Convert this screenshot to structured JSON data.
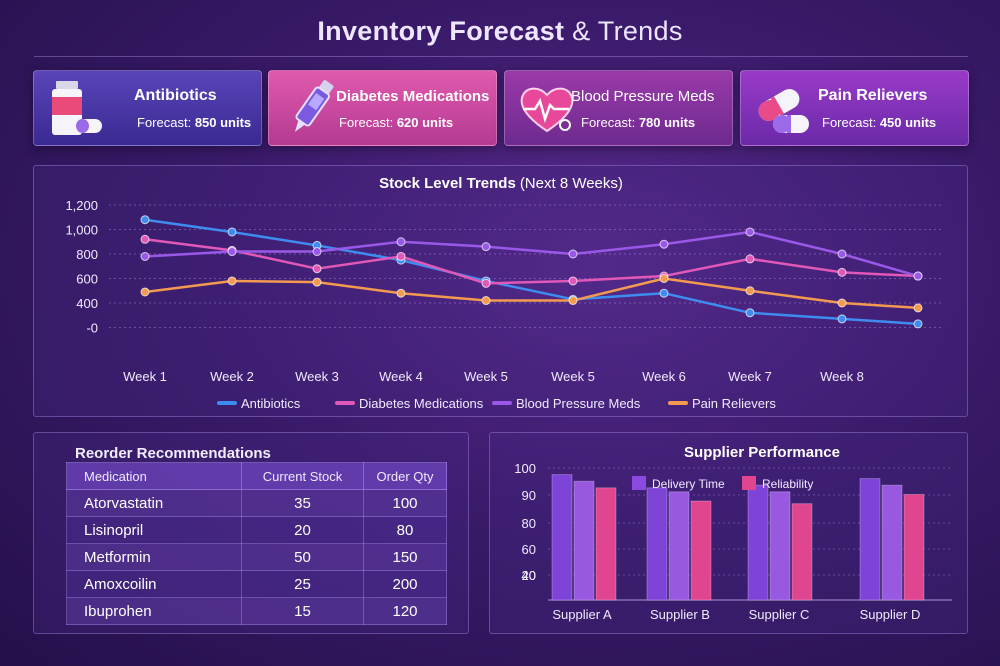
{
  "page": {
    "title_bold": "Inventory Forecast",
    "title_rest": " & Trends"
  },
  "cards": [
    {
      "name": "Antibiotics",
      "forecast_label": "Forecast:",
      "forecast_value": "850 units",
      "icon": "pill-bottle-icon"
    },
    {
      "name": "Diabetes Medications",
      "forecast_label": "Forecast:",
      "forecast_value": "620 units",
      "icon": "insulin-pen-icon"
    },
    {
      "name": "Blood Pressure Meds",
      "forecast_label": "Forecast:",
      "forecast_value": "780 units",
      "icon": "heart-pulse-icon"
    },
    {
      "name": "Pain Relievers",
      "forecast_label": "Forecast:",
      "forecast_value": "450 units",
      "icon": "capsules-icon"
    }
  ],
  "reorder": {
    "title": "Reorder Recommendations",
    "headers": [
      "Medication",
      "Current Stock",
      "Order Qty"
    ],
    "rows": [
      [
        "Atorvastatin",
        "35",
        "100"
      ],
      [
        "Lisinopril",
        "20",
        "80"
      ],
      [
        "Metformin",
        "50",
        "150"
      ],
      [
        "Amoxcoilin",
        "25",
        "200"
      ],
      [
        "Ibuprohen",
        "15",
        "120"
      ]
    ]
  },
  "colors": {
    "antibiotics": "#3f8cf0",
    "diabetes": "#e058b8",
    "bp": "#9a58e8",
    "pain": "#f39a50",
    "delivery": "#8a4ae0",
    "reliability": "#e0458f"
  },
  "chart_data": [
    {
      "type": "line",
      "title": "Stock Level Trends",
      "subtitle": "(Next 8 Weeks)",
      "categories": [
        "Week 1",
        "Week 2",
        "Week 3",
        "Week 4",
        "Week 5",
        "Week 5",
        "Week 6",
        "Week 7",
        "Week 8",
        ""
      ],
      "y_ticks": [
        "1,200",
        "1,000",
        "800",
        "600",
        "400",
        "-0"
      ],
      "ylim": [
        0,
        1200
      ],
      "grid": true,
      "legend_position": "bottom",
      "series": [
        {
          "name": "Antibiotics",
          "color": "#3f8cf0",
          "values": [
            1080,
            980,
            870,
            750,
            580,
            430,
            480,
            320,
            270,
            230
          ]
        },
        {
          "name": "Diabetes Medications",
          "color": "#e058b8",
          "values": [
            920,
            830,
            680,
            780,
            560,
            580,
            620,
            760,
            650,
            620
          ]
        },
        {
          "name": "Blood Pressure Meds",
          "color": "#9a58e8",
          "values": [
            780,
            820,
            820,
            900,
            860,
            800,
            880,
            980,
            800,
            620
          ]
        },
        {
          "name": "Pain Relievers",
          "color": "#f39a50",
          "values": [
            490,
            580,
            570,
            480,
            420,
            420,
            600,
            500,
            400,
            360
          ]
        }
      ]
    },
    {
      "type": "bar",
      "title": "Supplier Performance",
      "categories": [
        "Supplier A",
        "Supplier B",
        "Supplier C",
        "Supplier D"
      ],
      "y_ticks": [
        "100",
        "90",
        "80",
        "60",
        "40",
        "20"
      ],
      "ylim": [
        0,
        100
      ],
      "grid": true,
      "legend_position": "top",
      "series": [
        {
          "name": "Delivery Time",
          "color": "#8a4ae0",
          "values": [
            [
              95,
              90
            ],
            [
              85,
              82
            ],
            [
              87,
              82
            ],
            [
              92,
              87
            ]
          ]
        },
        {
          "name": "Reliability",
          "color": "#e0458f",
          "values": [
            85,
            75,
            73,
            80
          ]
        }
      ]
    }
  ]
}
